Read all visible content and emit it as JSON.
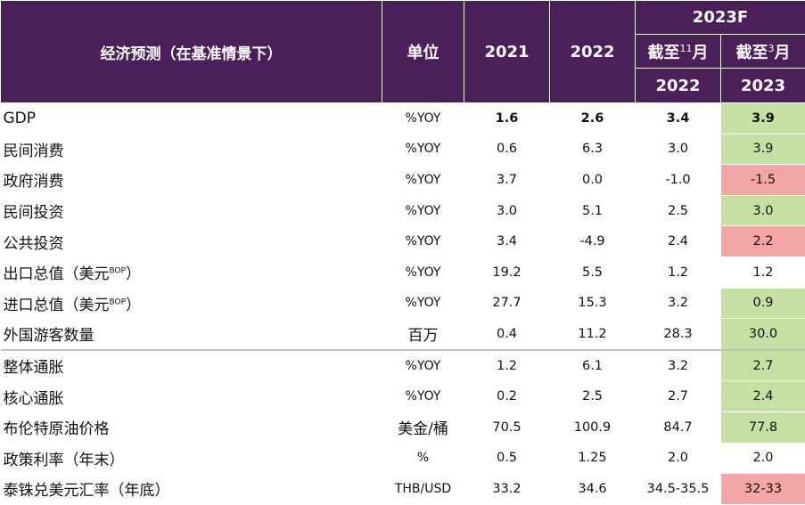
{
  "header": {
    "title": "经济预测（在基准情景下）",
    "unit": "单位",
    "col_2021": "2021",
    "col_2022": "2022",
    "forecast_group": "2023F",
    "asof_nov_prefix": "截至",
    "asof_nov_num": "11",
    "asof_nov_suffix": "月",
    "asof_mar_prefix": "截至",
    "asof_mar_num": "3",
    "asof_mar_suffix": "月",
    "sub_2022": "2022",
    "sub_2023": "2023"
  },
  "rows": [
    {
      "label": "GDP",
      "unit": "%YOY",
      "v2021": "1.6",
      "v2022": "2.6",
      "nov": "3.4",
      "mar": "3.9",
      "mar_color": "green",
      "bold": true
    },
    {
      "label": "民间消费",
      "unit": "%YOY",
      "v2021": "0.6",
      "v2022": "6.3",
      "nov": "3.0",
      "mar": "3.9",
      "mar_color": "green"
    },
    {
      "label": "政府消费",
      "unit": "%YOY",
      "v2021": "3.7",
      "v2022": "0.0",
      "nov": "-1.0",
      "mar": "-1.5",
      "mar_color": "red"
    },
    {
      "label": "民间投资",
      "unit": "%YOY",
      "v2021": "3.0",
      "v2022": "5.1",
      "nov": "2.5",
      "mar": "3.0",
      "mar_color": "green"
    },
    {
      "label": "公共投资",
      "unit": "%YOY",
      "v2021": "3.4",
      "v2022": "-4.9",
      "nov": "2.4",
      "mar": "2.2",
      "mar_color": "red"
    },
    {
      "label": "出口总值（美元",
      "label_sup": "BOP",
      "label_end": "）",
      "unit": "%YOY",
      "v2021": "19.2",
      "v2022": "5.5",
      "nov": "1.2",
      "mar": "1.2",
      "mar_color": "none"
    },
    {
      "label": "进口总值（美元",
      "label_sup": "BOP",
      "label_end": "）",
      "unit": "%YOY",
      "v2021": "27.7",
      "v2022": "15.3",
      "nov": "3.2",
      "mar": "0.9",
      "mar_color": "green"
    },
    {
      "label": "外国游客数量",
      "unit": "百万",
      "v2021": "0.4",
      "v2022": "11.2",
      "nov": "28.3",
      "mar": "30.0",
      "mar_color": "green"
    },
    {
      "label": "整体通胀",
      "unit": "%YOY",
      "v2021": "1.2",
      "v2022": "6.1",
      "nov": "3.2",
      "mar": "2.7",
      "mar_color": "green"
    },
    {
      "label": "核心通胀",
      "unit": "%YOY",
      "v2021": "0.2",
      "v2022": "2.5",
      "nov": "2.7",
      "mar": "2.4",
      "mar_color": "green"
    },
    {
      "label": "布伦特原油价格",
      "unit": "美金/桶",
      "v2021": "70.5",
      "v2022": "100.9",
      "nov": "84.7",
      "mar": "77.8",
      "mar_color": "green"
    },
    {
      "label": "政策利率（年末）",
      "unit": "%",
      "v2021": "0.5",
      "v2022": "1.25",
      "nov": "2.0",
      "mar": "2.0",
      "mar_color": "none"
    },
    {
      "label": "泰铢兑美元汇率（年底）",
      "unit": "THB/USD",
      "v2021": "33.2",
      "v2022": "34.6",
      "nov": "34.5-35.5",
      "mar": "32-33",
      "mar_color": "red"
    }
  ],
  "colors": {
    "header_bg": "#4a1f5a",
    "green": "#c6e0a4",
    "red": "#f4a6a6"
  }
}
